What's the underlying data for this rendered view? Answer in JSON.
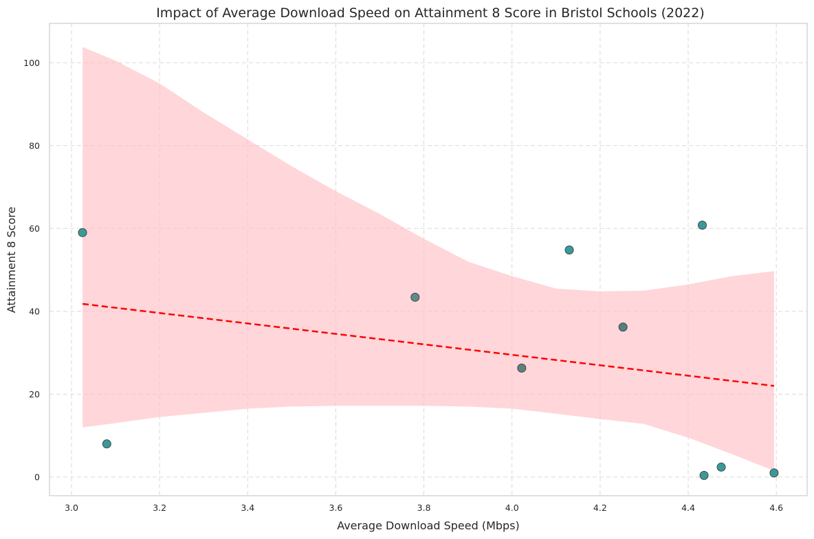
{
  "chart_data": {
    "type": "scatter",
    "title": "Impact of Average Download Speed on Attainment 8 Score in Bristol Schools (2022)",
    "xlabel": "Average Download Speed (Mbps)",
    "ylabel": "Attainment 8 Score",
    "xlim": [
      2.95,
      4.67
    ],
    "ylim": [
      -4.5,
      109.5
    ],
    "xticks": [
      3.0,
      3.2,
      3.4,
      3.6,
      3.8,
      4.0,
      4.2,
      4.4,
      4.6
    ],
    "xtick_labels": [
      "3.0",
      "3.2",
      "3.4",
      "3.6",
      "3.8",
      "4.0",
      "4.2",
      "4.4",
      "4.6"
    ],
    "yticks": [
      0,
      20,
      40,
      60,
      80,
      100
    ],
    "ytick_labels": [
      "0",
      "20",
      "40",
      "60",
      "80",
      "100"
    ],
    "grid": true,
    "points": [
      {
        "x": 3.025,
        "y": 59.0,
        "color": "#3a9a9a"
      },
      {
        "x": 3.08,
        "y": 8.0,
        "color": "#3a9a9a"
      },
      {
        "x": 3.78,
        "y": 43.4,
        "color": "#5e8a8a"
      },
      {
        "x": 4.022,
        "y": 26.3,
        "color": "#627f7f"
      },
      {
        "x": 4.13,
        "y": 54.8,
        "color": "#3a9a9a"
      },
      {
        "x": 4.252,
        "y": 36.2,
        "color": "#537f7f"
      },
      {
        "x": 4.432,
        "y": 60.8,
        "color": "#3a9a9a"
      },
      {
        "x": 4.436,
        "y": 0.4,
        "color": "#3a9a9a"
      },
      {
        "x": 4.475,
        "y": 2.4,
        "color": "#3a9a9a"
      },
      {
        "x": 4.595,
        "y": 1.0,
        "color": "#3a9a9a"
      }
    ],
    "regression_line": {
      "x": [
        3.025,
        4.595
      ],
      "y": [
        41.8,
        22.0
      ],
      "color": "#ff0000",
      "style": "dashed"
    },
    "confidence_band": {
      "color": "#ffc0c4",
      "x": [
        3.025,
        3.1,
        3.2,
        3.3,
        3.4,
        3.5,
        3.6,
        3.7,
        3.8,
        3.9,
        4.0,
        4.1,
        4.2,
        4.3,
        4.4,
        4.5,
        4.595
      ],
      "upper": [
        103.8,
        100.5,
        95.0,
        88.0,
        81.5,
        75.0,
        69.0,
        63.5,
        57.5,
        52.0,
        48.5,
        45.5,
        44.8,
        45.0,
        46.5,
        48.5,
        49.7
      ],
      "lower": [
        12.0,
        13.0,
        14.5,
        15.5,
        16.5,
        17.0,
        17.2,
        17.2,
        17.2,
        17.0,
        16.5,
        15.3,
        14.0,
        12.8,
        9.5,
        5.5,
        1.5
      ]
    }
  }
}
